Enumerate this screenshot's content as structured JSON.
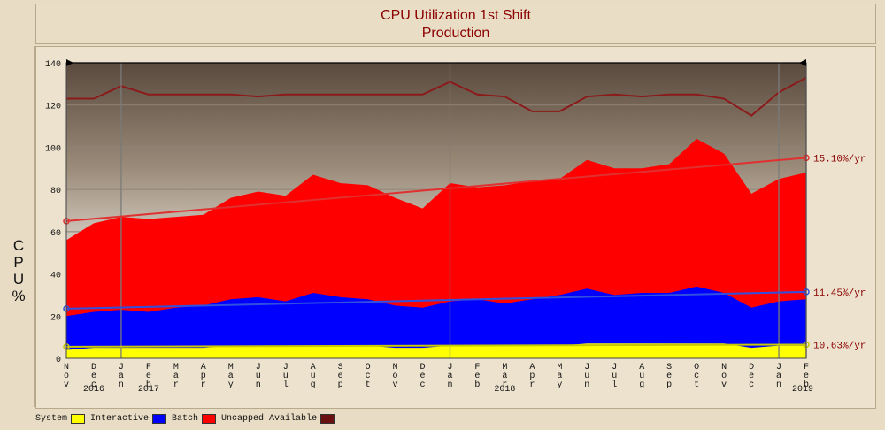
{
  "title": {
    "line1": "CPU Utilization 1st Shift",
    "line2": "Production"
  },
  "ylabel": "C\nP\nU\n%",
  "legend": [
    {
      "label": "System",
      "color": "#ffff00"
    },
    {
      "label": "Interactive",
      "color": "#0000ff"
    },
    {
      "label": "Batch",
      "color": "#ff0000"
    },
    {
      "label": "Uncapped Available",
      "color": "#6b1010"
    }
  ],
  "chart_data": {
    "type": "area",
    "title": "CPU Utilization 1st Shift",
    "subtitle": "Production",
    "ylabel": "CPU %",
    "ylim": [
      0,
      140
    ],
    "yticks": [
      0,
      20,
      40,
      60,
      80,
      100,
      120,
      140
    ],
    "grid": true,
    "categories": [
      "Nov",
      "Dec",
      "Jan",
      "Feb",
      "Mar",
      "Apr",
      "May",
      "Jun",
      "Jul",
      "Aug",
      "Sep",
      "Oct",
      "Nov",
      "Dec",
      "Jan",
      "Feb",
      "Mar",
      "Apr",
      "May",
      "Jun",
      "Jul",
      "Aug",
      "Sep",
      "Oct",
      "Nov",
      "Dec",
      "Jan",
      "Feb"
    ],
    "year_labels": [
      {
        "label": "2016",
        "index": 1
      },
      {
        "label": "2017",
        "index": 3
      },
      {
        "label": "2018",
        "index": 16
      },
      {
        "label": "2019",
        "index": 27
      }
    ],
    "year_dividers": [
      2,
      14,
      26
    ],
    "series": [
      {
        "name": "System",
        "color": "#ffff00",
        "values": [
          4,
          5,
          5,
          5,
          5,
          5,
          6,
          6,
          6,
          6,
          6,
          6,
          5,
          5,
          6,
          6,
          6,
          6,
          6,
          7,
          7,
          7,
          7,
          7,
          7,
          5,
          6,
          6
        ]
      },
      {
        "name": "Interactive",
        "color": "#0000ff",
        "values": [
          20,
          22,
          23,
          22,
          24,
          25,
          28,
          29,
          27,
          31,
          29,
          28,
          25,
          24,
          27,
          28,
          26,
          28,
          30,
          33,
          30,
          31,
          31,
          34,
          31,
          24,
          27,
          28
        ]
      },
      {
        "name": "Batch",
        "color": "#ff0000",
        "values": [
          56,
          64,
          67,
          66,
          67,
          68,
          76,
          79,
          77,
          87,
          83,
          82,
          76,
          71,
          83,
          81,
          82,
          84,
          85,
          94,
          90,
          90,
          92,
          104,
          97,
          78,
          85,
          88
        ]
      },
      {
        "name": "Uncapped Available",
        "color": "#8b1a1a",
        "values": [
          123,
          123,
          129,
          125,
          125,
          125,
          125,
          124,
          125,
          125,
          125,
          125,
          125,
          125,
          131,
          125,
          124,
          117,
          117,
          124,
          125,
          124,
          125,
          125,
          123,
          115,
          126,
          133
        ]
      }
    ],
    "trendlines": [
      {
        "label": "15.10%/yr",
        "color": "#e03030",
        "from": 65,
        "to": 95
      },
      {
        "label": "11.45%/yr",
        "color": "#3050e0",
        "from": 23.5,
        "to": 31.5
      },
      {
        "label": "10.63%/yr",
        "color": "#c8c800",
        "from": 5.5,
        "to": 6.5
      }
    ]
  }
}
